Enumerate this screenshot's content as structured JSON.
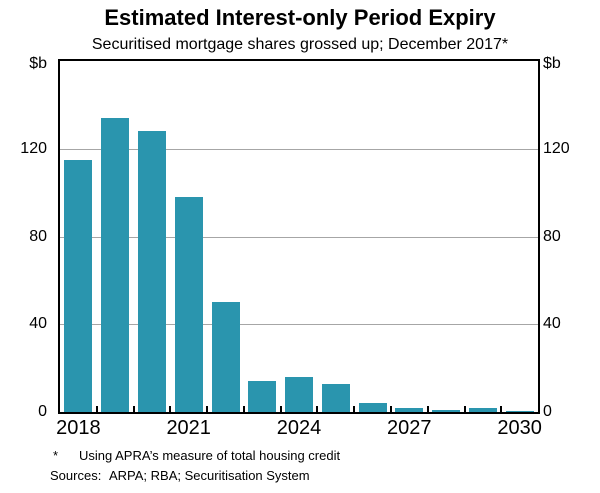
{
  "title": "Estimated Interest-only Period Expiry",
  "subtitle": "Securitised mortgage shares grossed up; December 2017*",
  "y_axis": {
    "unit_left": "$b",
    "unit_right": "$b",
    "tick_labels": [
      "0",
      "40",
      "80",
      "120"
    ],
    "tick_values": [
      0,
      40,
      80,
      120
    ]
  },
  "x_axis": {
    "labels": [
      "2018",
      "2021",
      "2024",
      "2027",
      "2030"
    ],
    "label_slot_indices": [
      0,
      3,
      6,
      9,
      12
    ]
  },
  "footnote": {
    "marker": "*",
    "text": "Using APRA’s measure of total housing credit"
  },
  "sources": {
    "label": "Sources:",
    "text": "ARPA; RBA; Securitisation System"
  },
  "colors": {
    "bar": "#2a95ae",
    "grid": "#a6a6a6",
    "axis": "#000000",
    "background": "#ffffff"
  },
  "chart_data": {
    "type": "bar",
    "title": "Estimated Interest-only Period Expiry",
    "subtitle": "Securitised mortgage shares grossed up; December 2017*",
    "categories": [
      2018,
      2019,
      2020,
      2021,
      2022,
      2023,
      2024,
      2025,
      2026,
      2027,
      2028,
      2029,
      2030
    ],
    "values": [
      115,
      134,
      128,
      98,
      50,
      14,
      16,
      13,
      4,
      2,
      1,
      2,
      0.5
    ],
    "xlabel": "",
    "ylabel": "$b",
    "ylim": [
      0,
      160
    ],
    "yticks": [
      0,
      40,
      80,
      120
    ],
    "grid": true,
    "legend": "none"
  }
}
